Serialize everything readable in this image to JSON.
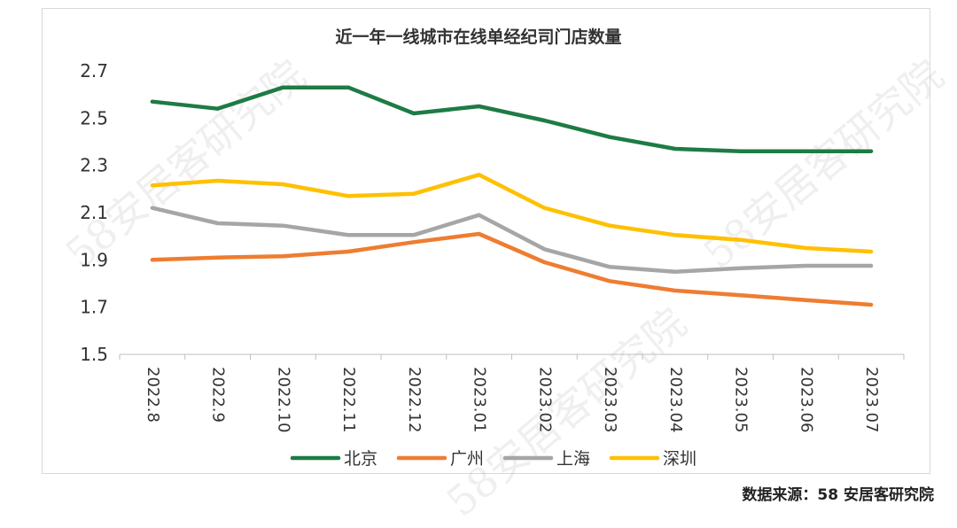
{
  "source_label": "数据来源：58 安居客研究院",
  "watermark_text": "58安居客研究院",
  "chart_data": {
    "type": "line",
    "title": "近一年一线城市在线单经纪司门店数量",
    "xlabel": "",
    "ylabel": "",
    "ylim": [
      1.5,
      2.7
    ],
    "yticks": [
      "2.7",
      "2.5",
      "2.3",
      "2.1",
      "1.9",
      "1.7",
      "1.5"
    ],
    "grid": false,
    "legend_position": "bottom",
    "categories": [
      "2022.8",
      "2022.9",
      "2022.10",
      "2022.11",
      "2022.12",
      "2023.01",
      "2023.02",
      "2023.03",
      "2023.04",
      "2023.05",
      "2023.06",
      "2023.07"
    ],
    "series": [
      {
        "name": "北京",
        "color": "#1e7b45",
        "values": [
          2.57,
          2.54,
          2.63,
          2.63,
          2.52,
          2.55,
          2.49,
          2.42,
          2.37,
          2.36,
          2.36,
          2.36
        ]
      },
      {
        "name": "广州",
        "color": "#ee7d31",
        "values": [
          1.9,
          1.91,
          1.915,
          1.935,
          1.975,
          2.01,
          1.89,
          1.81,
          1.77,
          1.75,
          1.73,
          1.71
        ]
      },
      {
        "name": "上海",
        "color": "#a6a6a6",
        "values": [
          2.12,
          2.055,
          2.045,
          2.005,
          2.005,
          2.09,
          1.945,
          1.87,
          1.85,
          1.865,
          1.875,
          1.875
        ]
      },
      {
        "name": "深圳",
        "color": "#ffc000",
        "values": [
          2.215,
          2.235,
          2.22,
          2.17,
          2.18,
          2.26,
          2.12,
          2.045,
          2.005,
          1.985,
          1.95,
          1.935
        ]
      }
    ]
  }
}
